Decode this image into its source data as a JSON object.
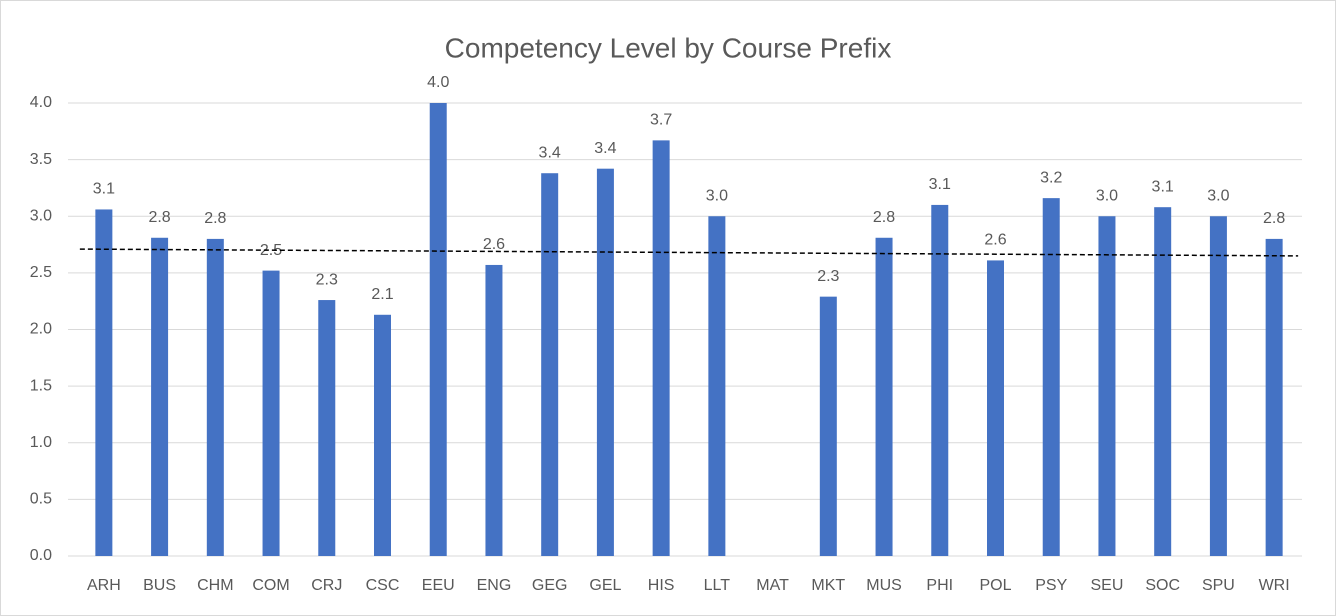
{
  "chart_data": {
    "type": "bar",
    "title": "Competency Level by Course Prefix",
    "categories": [
      "ARH",
      "BUS",
      "CHM",
      "COM",
      "CRJ",
      "CSC",
      "EEU",
      "ENG",
      "GEG",
      "GEL",
      "HIS",
      "LLT",
      "MAT",
      "MKT",
      "MUS",
      "PHI",
      "POL",
      "PSY",
      "SEU",
      "SOC",
      "SPU",
      "WRI"
    ],
    "values": [
      3.06,
      2.81,
      2.8,
      2.52,
      2.26,
      2.13,
      4.0,
      2.57,
      3.38,
      3.42,
      3.67,
      3.0,
      null,
      2.29,
      2.81,
      3.1,
      2.61,
      3.16,
      3.0,
      3.08,
      3.0,
      2.8
    ],
    "value_labels": [
      "3.1",
      "2.8",
      "2.8",
      "2.5",
      "2.3",
      "2.1",
      "4.0",
      "2.6",
      "3.4",
      "3.4",
      "3.7",
      "3.0",
      null,
      "2.3",
      "2.8",
      "3.1",
      "2.6",
      "3.2",
      "3.0",
      "3.1",
      "3.0",
      "2.8"
    ],
    "color": "#4472c4",
    "trendline": [
      2.71,
      2.65
    ],
    "ylim": [
      0,
      4
    ],
    "yticks": [
      {
        "value": 0,
        "label": "0.0"
      },
      {
        "value": 0.5,
        "label": "0.5"
      },
      {
        "value": 1,
        "label": "1.0"
      },
      {
        "value": 1.5,
        "label": "1.5"
      },
      {
        "value": 2,
        "label": "2.0"
      },
      {
        "value": 2.5,
        "label": "2.5"
      },
      {
        "value": 3,
        "label": "3.0"
      },
      {
        "value": 3.5,
        "label": "3.5"
      },
      {
        "value": 4,
        "label": "4.0"
      }
    ],
    "grid": true
  }
}
